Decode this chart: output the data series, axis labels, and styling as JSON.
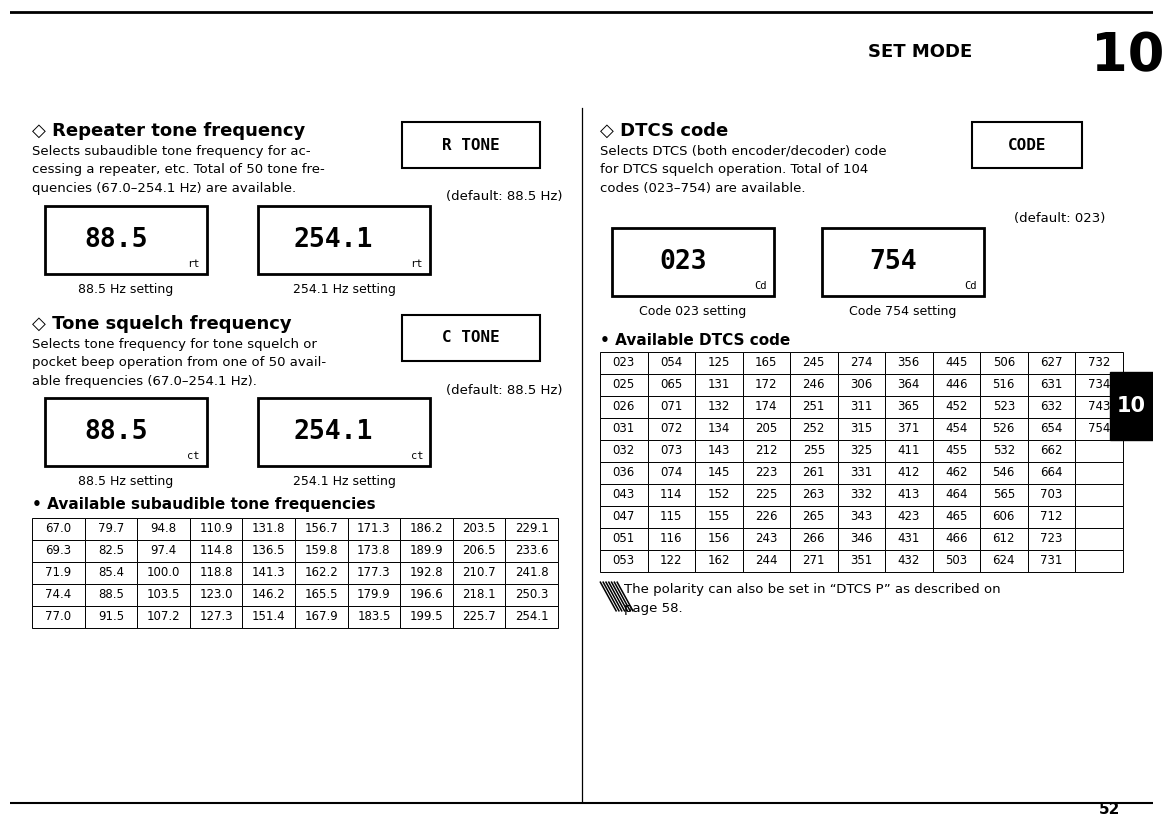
{
  "bg_color": "#ffffff",
  "page_title": "SET MODE",
  "page_number": "10",
  "page_footer": "52",
  "s1_title": "◇ Repeater tone frequency",
  "s1_body": "Selects subaudible tone frequency for ac-\ncessing a repeater, etc. Total of 50 tone fre-\nquencies (67.0–254.1 Hz) are available.",
  "s1_default": "(default: 88.5 Hz)",
  "s1_icon": "R TONE",
  "s1_disp1": "88.5",
  "s1_disp2": "254.1",
  "s1_sub1": "rt",
  "s1_sub2": "rt",
  "s1_lbl1": "88.5 Hz setting",
  "s1_lbl2": "254.1 Hz setting",
  "s2_title": "◇ Tone squelch frequency",
  "s2_body": "Selects tone frequency for tone squelch or\npocket beep operation from one of 50 avail-\nable frequencies (67.0–254.1 Hz).",
  "s2_default": "(default: 88.5 Hz)",
  "s2_icon": "C TONE",
  "s2_disp1": "88.5",
  "s2_disp2": "254.1",
  "s2_sub1": "ct",
  "s2_sub2": "ct",
  "s2_lbl1": "88.5 Hz setting",
  "s2_lbl2": "254.1 Hz setting",
  "s3_title": "◇ DTCS code",
  "s3_body": "Selects DTCS (both encoder/decoder) code\nfor DTCS squelch operation. Total of 104\ncodes (023–754) are available.",
  "s3_default": "(default: 023)",
  "s3_icon": "CODE",
  "s3_disp1": "023",
  "s3_disp2": "754",
  "s3_sub1": "Cd",
  "s3_sub2": "Cd",
  "s3_lbl1": "Code 023 setting",
  "s3_lbl2": "Code 754 setting",
  "tone_title": "• Available subaudible tone frequencies",
  "tone_data": [
    [
      "67.0",
      "79.7",
      "94.8",
      "110.9",
      "131.8",
      "156.7",
      "171.3",
      "186.2",
      "203.5",
      "229.1"
    ],
    [
      "69.3",
      "82.5",
      "97.4",
      "114.8",
      "136.5",
      "159.8",
      "173.8",
      "189.9",
      "206.5",
      "233.6"
    ],
    [
      "71.9",
      "85.4",
      "100.0",
      "118.8",
      "141.3",
      "162.2",
      "177.3",
      "192.8",
      "210.7",
      "241.8"
    ],
    [
      "74.4",
      "88.5",
      "103.5",
      "123.0",
      "146.2",
      "165.5",
      "179.9",
      "196.6",
      "218.1",
      "250.3"
    ],
    [
      "77.0",
      "91.5",
      "107.2",
      "127.3",
      "151.4",
      "167.9",
      "183.5",
      "199.5",
      "225.7",
      "254.1"
    ]
  ],
  "dtcs_title": "• Available DTCS code",
  "dtcs_data": [
    [
      "023",
      "054",
      "125",
      "165",
      "245",
      "274",
      "356",
      "445",
      "506",
      "627",
      "732"
    ],
    [
      "025",
      "065",
      "131",
      "172",
      "246",
      "306",
      "364",
      "446",
      "516",
      "631",
      "734"
    ],
    [
      "026",
      "071",
      "132",
      "174",
      "251",
      "311",
      "365",
      "452",
      "523",
      "632",
      "743"
    ],
    [
      "031",
      "072",
      "134",
      "205",
      "252",
      "315",
      "371",
      "454",
      "526",
      "654",
      "754"
    ],
    [
      "032",
      "073",
      "143",
      "212",
      "255",
      "325",
      "411",
      "455",
      "532",
      "662",
      ""
    ],
    [
      "036",
      "074",
      "145",
      "223",
      "261",
      "331",
      "412",
      "462",
      "546",
      "664",
      ""
    ],
    [
      "043",
      "114",
      "152",
      "225",
      "263",
      "332",
      "413",
      "464",
      "565",
      "703",
      ""
    ],
    [
      "047",
      "115",
      "155",
      "226",
      "265",
      "343",
      "423",
      "465",
      "606",
      "712",
      ""
    ],
    [
      "051",
      "116",
      "156",
      "243",
      "266",
      "346",
      "431",
      "466",
      "612",
      "723",
      ""
    ],
    [
      "053",
      "122",
      "162",
      "244",
      "271",
      "351",
      "432",
      "503",
      "624",
      "731",
      ""
    ]
  ],
  "note_text": "The polarity can also be set in “DTCS P” as described on\npage 58.",
  "tab_text": "10"
}
